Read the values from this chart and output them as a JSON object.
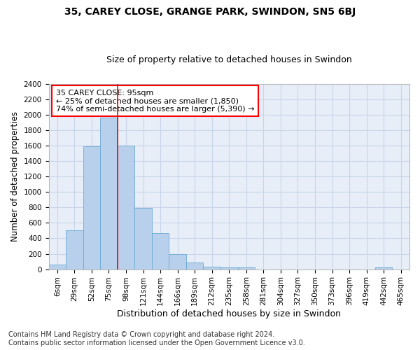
{
  "title1": "35, CAREY CLOSE, GRANGE PARK, SWINDON, SN5 6BJ",
  "title2": "Size of property relative to detached houses in Swindon",
  "xlabel": "Distribution of detached houses by size in Swindon",
  "ylabel": "Number of detached properties",
  "categories": [
    "6sqm",
    "29sqm",
    "52sqm",
    "75sqm",
    "98sqm",
    "121sqm",
    "144sqm",
    "166sqm",
    "189sqm",
    "212sqm",
    "235sqm",
    "258sqm",
    "281sqm",
    "304sqm",
    "327sqm",
    "350sqm",
    "373sqm",
    "396sqm",
    "419sqm",
    "442sqm",
    "465sqm"
  ],
  "values": [
    60,
    500,
    1590,
    1960,
    1600,
    790,
    470,
    195,
    90,
    35,
    25,
    20,
    0,
    0,
    0,
    0,
    0,
    0,
    0,
    25,
    0
  ],
  "bar_color": "#b8d0eb",
  "bar_edge_color": "#6aaad4",
  "grid_color": "#c8d4e8",
  "background_color": "#e8eef8",
  "vline_x": 3.5,
  "vline_color": "red",
  "annotation_text": "35 CAREY CLOSE: 95sqm\n← 25% of detached houses are smaller (1,850)\n74% of semi-detached houses are larger (5,390) →",
  "annotation_box_color": "white",
  "annotation_box_edge": "red",
  "ylim": [
    0,
    2400
  ],
  "yticks": [
    0,
    200,
    400,
    600,
    800,
    1000,
    1200,
    1400,
    1600,
    1800,
    2000,
    2200,
    2400
  ],
  "footer1": "Contains HM Land Registry data © Crown copyright and database right 2024.",
  "footer2": "Contains public sector information licensed under the Open Government Licence v3.0.",
  "title1_fontsize": 10,
  "title2_fontsize": 9,
  "xlabel_fontsize": 9,
  "ylabel_fontsize": 8.5,
  "tick_fontsize": 7.5,
  "footer_fontsize": 7,
  "annot_fontsize": 8
}
